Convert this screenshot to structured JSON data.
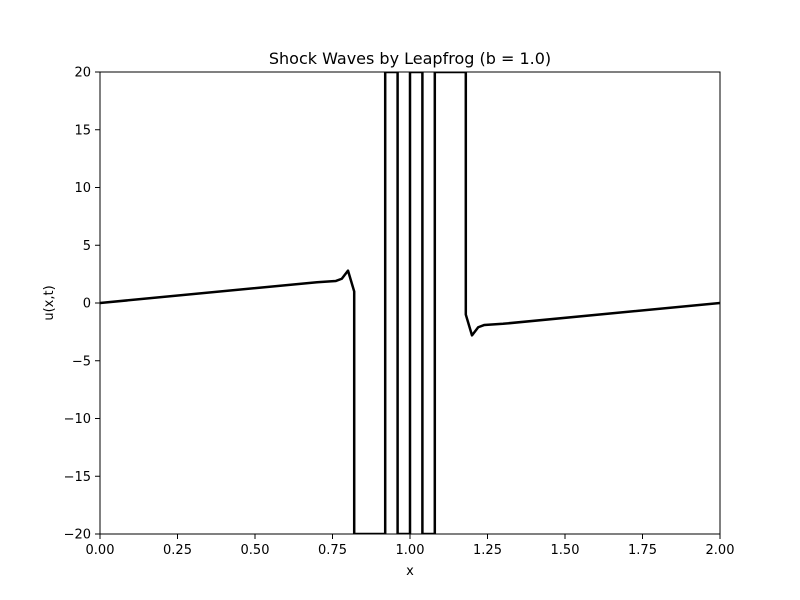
{
  "chart_data": {
    "type": "line",
    "title": "Shock Waves by Leapfrog (b = 1.0)",
    "xlabel": "x",
    "ylabel": "u(x,t)",
    "xlim": [
      0.0,
      2.0
    ],
    "ylim": [
      -20,
      20
    ],
    "grid": false,
    "legend": "none",
    "xticks": [
      "0.00",
      "0.25",
      "0.50",
      "0.75",
      "1.00",
      "1.25",
      "1.50",
      "1.75",
      "2.00"
    ],
    "yticks": [
      "20",
      "15",
      "10",
      "5",
      "0",
      "−5",
      "−10",
      "−15",
      "−20"
    ],
    "series": [
      {
        "color": "#000000",
        "x": [
          0.0,
          0.7,
          0.76,
          0.78,
          0.8,
          0.82,
          0.82,
          0.82,
          0.92,
          0.92,
          0.92,
          0.96,
          0.96,
          0.96,
          1.0,
          1.0,
          1.0,
          1.04,
          1.04,
          1.04,
          1.08,
          1.08,
          1.18,
          1.18,
          1.18,
          1.2,
          1.22,
          1.24,
          1.3,
          2.0
        ],
        "y": [
          0.0,
          1.8,
          1.9,
          2.1,
          2.8,
          1.0,
          -20.0,
          -20.0,
          -20.0,
          20.0,
          20.0,
          20.0,
          -20.0,
          -20.0,
          -20.0,
          20.0,
          20.0,
          20.0,
          -20.0,
          -20.0,
          -20.0,
          20.0,
          20.0,
          -1.0,
          -1.0,
          -2.8,
          -2.1,
          -1.9,
          -1.8,
          0.0
        ]
      }
    ]
  }
}
